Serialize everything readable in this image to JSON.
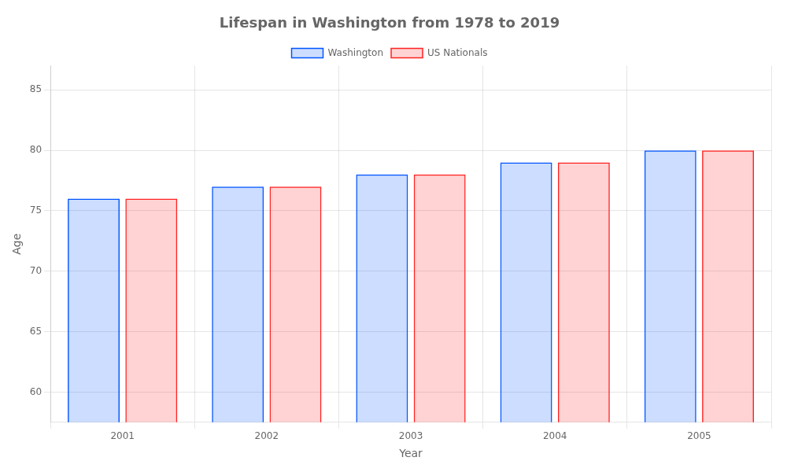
{
  "chart_data": {
    "type": "bar",
    "title": "Lifespan in Washington from 1978 to 2019",
    "x_label": "Year",
    "y_label": "Age",
    "categories": [
      "2001",
      "2002",
      "2003",
      "2004",
      "2005"
    ],
    "series": [
      {
        "name": "Washington",
        "color": "#0055ff",
        "values": [
          76.0,
          77.0,
          78.0,
          79.0,
          80.0
        ]
      },
      {
        "name": "US Nationals",
        "color": "#ff2222",
        "values": [
          76.0,
          77.0,
          78.0,
          79.0,
          80.0
        ]
      }
    ],
    "ylim": [
      57.5,
      87
    ],
    "yticks": [
      60,
      65,
      70,
      75,
      80,
      85
    ],
    "grid": true,
    "legend": "top"
  }
}
